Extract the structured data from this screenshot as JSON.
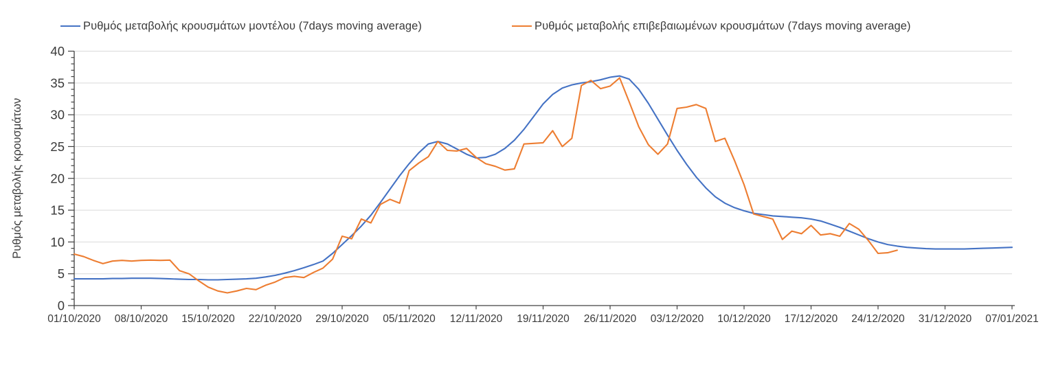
{
  "legend": {
    "items": [
      {
        "label": "Ρυθμός μεταβολής κρουσμάτων μοντέλου (7days moving average)",
        "color": "#4472c4"
      },
      {
        "label": "Ρυθμός μεταβολής επιβεβαιωμένων κρουσμάτων (7days moving average)",
        "color": "#ed7d31"
      }
    ]
  },
  "colors": {
    "model_line": "#4472c4",
    "confirmed_line": "#ed7d31",
    "gridline": "#d9d9d9",
    "axis": "#404040",
    "text": "#3a3a3a"
  },
  "chart_data": {
    "type": "line",
    "title": "",
    "xlabel": "",
    "ylabel": "Ρυθμός μεταβολής κρουσμάτων",
    "ylim": [
      0,
      40
    ],
    "y_ticks": [
      0,
      5,
      10,
      15,
      20,
      25,
      30,
      35,
      40
    ],
    "y_minor_tick_step": 1,
    "grid": "horizontal",
    "legend_position": "top",
    "x_interval": "daily",
    "x_max_index": 98,
    "x_tick_every_days": 7,
    "x_tick_labels": [
      "01/10/2020",
      "08/10/2020",
      "15/10/2020",
      "22/10/2020",
      "29/10/2020",
      "05/11/2020",
      "12/11/2020",
      "19/11/2020",
      "26/11/2020",
      "03/12/2020",
      "10/12/2020",
      "17/12/2020",
      "24/12/2020",
      "31/12/2020",
      "07/01/2021"
    ],
    "series": [
      {
        "name": "Ρυθμός μεταβολής κρουσμάτων μοντέλου (7days moving average)",
        "color": "#4472c4",
        "start_date": "01/10/2020",
        "values": [
          4.2,
          4.2,
          4.2,
          4.2,
          4.25,
          4.25,
          4.3,
          4.3,
          4.3,
          4.25,
          4.2,
          4.15,
          4.1,
          4.1,
          4.05,
          4.05,
          4.1,
          4.15,
          4.2,
          4.3,
          4.5,
          4.75,
          5.1,
          5.5,
          5.95,
          6.45,
          7.0,
          8.2,
          9.6,
          11.0,
          12.5,
          14.2,
          16.2,
          18.3,
          20.4,
          22.3,
          24.0,
          25.4,
          25.8,
          25.4,
          24.6,
          23.8,
          23.2,
          23.3,
          23.8,
          24.7,
          26.0,
          27.7,
          29.7,
          31.7,
          33.2,
          34.2,
          34.7,
          35.0,
          35.2,
          35.5,
          35.9,
          36.1,
          35.6,
          34.0,
          31.8,
          29.3,
          26.8,
          24.4,
          22.2,
          20.2,
          18.5,
          17.1,
          16.1,
          15.4,
          14.9,
          14.5,
          14.3,
          14.1,
          14.0,
          13.9,
          13.8,
          13.6,
          13.3,
          12.8,
          12.3,
          11.7,
          11.1,
          10.5,
          10.0,
          9.6,
          9.35,
          9.15,
          9.05,
          8.95,
          8.9,
          8.9,
          8.9,
          8.9,
          8.95,
          9.0,
          9.05,
          9.1,
          9.15
        ]
      },
      {
        "name": "Ρυθμός μεταβολής επιβεβαιωμένων κρουσμάτων (7days moving average)",
        "color": "#ed7d31",
        "start_date": "01/10/2020",
        "values": [
          8.1,
          7.7,
          7.1,
          6.6,
          7.0,
          7.1,
          7.0,
          7.1,
          7.15,
          7.1,
          7.15,
          5.5,
          5.0,
          3.9,
          2.9,
          2.3,
          2.0,
          2.3,
          2.7,
          2.5,
          3.2,
          3.7,
          4.4,
          4.6,
          4.4,
          5.2,
          5.9,
          7.3,
          10.9,
          10.5,
          13.6,
          13.0,
          15.9,
          16.7,
          16.1,
          21.2,
          22.4,
          23.4,
          25.8,
          24.4,
          24.3,
          24.7,
          23.3,
          22.3,
          21.9,
          21.3,
          21.5,
          25.4,
          25.5,
          25.6,
          27.5,
          25.0,
          26.3,
          34.6,
          35.4,
          34.1,
          34.5,
          35.8,
          32.0,
          28.1,
          25.3,
          23.8,
          25.4,
          31.0,
          31.2,
          31.6,
          31.0,
          25.8,
          26.3,
          22.8,
          19.0,
          14.4,
          14.0,
          13.6,
          10.4,
          11.7,
          11.3,
          12.6,
          11.1,
          11.3,
          10.9,
          12.9,
          12.0,
          10.2,
          8.2,
          8.3,
          8.7
        ]
      }
    ]
  }
}
